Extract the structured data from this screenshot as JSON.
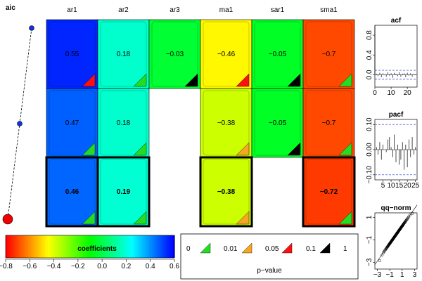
{
  "chart_data": [
    {
      "type": "heatmap",
      "panel": "coefficient-grid",
      "aic_title": "aic",
      "columns": [
        "ar1",
        "ar2",
        "ar3",
        "ma1",
        "sar1",
        "sma1"
      ],
      "rows": [
        {
          "cells": [
            {
              "present": true,
              "label": "0.55",
              "value": 0.55,
              "sig": 0.05
            },
            {
              "present": true,
              "label": "0.18",
              "value": 0.18,
              "sig": 0
            },
            {
              "present": true,
              "label": "−0.03",
              "value": -0.03,
              "sig": 0.1
            },
            {
              "present": true,
              "label": "−0.46",
              "value": -0.46,
              "sig": 0.05
            },
            {
              "present": true,
              "label": "−0.05",
              "value": -0.05,
              "sig": 0.1
            },
            {
              "present": true,
              "label": "−0.7",
              "value": -0.7,
              "sig": 0
            }
          ]
        },
        {
          "cells": [
            {
              "present": true,
              "label": "0.47",
              "value": 0.47,
              "sig": 0
            },
            {
              "present": true,
              "label": "0.18",
              "value": 0.18,
              "sig": 0
            },
            {
              "present": false
            },
            {
              "present": true,
              "label": "−0.38",
              "value": -0.38,
              "sig": 0.01
            },
            {
              "present": true,
              "label": "−0.05",
              "value": -0.05,
              "sig": 0.1
            },
            {
              "present": true,
              "label": "−0.7",
              "value": -0.7,
              "sig": 0
            }
          ]
        },
        {
          "best": true,
          "cells": [
            {
              "present": true,
              "label": "0.46",
              "value": 0.46,
              "sig": 0
            },
            {
              "present": true,
              "label": "0.19",
              "value": 0.19,
              "sig": 0
            },
            {
              "present": false
            },
            {
              "present": true,
              "label": "−0.38",
              "value": -0.38,
              "sig": 0.01
            },
            {
              "present": false
            },
            {
              "present": true,
              "label": "−0.72",
              "value": -0.72,
              "sig": 0
            }
          ]
        }
      ],
      "aic_relative": [
        1.0,
        0.5,
        0.0
      ],
      "colorbar": {
        "title": "coefficients",
        "range": [
          -0.8,
          0.6
        ],
        "ticks": [
          "−0.8",
          "−0.6",
          "−0.4",
          "−0.2",
          "0.0",
          "0.2",
          "0.4",
          "0.6"
        ],
        "tick_values": [
          -0.8,
          -0.6,
          -0.4,
          -0.2,
          0.0,
          0.2,
          0.4,
          0.6
        ]
      },
      "pvalue_legend": {
        "title": "p−value",
        "levels": [
          "0",
          "0.01",
          "0.05",
          "0.1",
          "1"
        ],
        "colors": [
          "#22dd22",
          "#f5a623",
          "#ff1010",
          "#000000"
        ]
      }
    },
    {
      "type": "bar",
      "title": "acf",
      "ylim": [
        -0.25,
        1.0
      ],
      "yticks": [
        "0.0",
        "0.4",
        "0.8"
      ],
      "ytick_values": [
        0.0,
        0.4,
        0.8
      ],
      "xlim": [
        0,
        26
      ],
      "xticks": [
        "0",
        "10",
        "20"
      ],
      "xtick_values": [
        0,
        10,
        20
      ],
      "conf_band": [
        -0.09,
        0.09
      ],
      "lags": [
        1,
        2,
        3,
        4,
        5,
        6,
        7,
        8,
        9,
        10,
        11,
        12,
        13,
        14,
        15,
        16,
        17,
        18,
        19,
        20,
        21,
        22,
        23,
        24,
        25
      ],
      "values": [
        0.02,
        -0.03,
        0.04,
        -0.05,
        0.03,
        0.01,
        -0.04,
        0.05,
        -0.02,
        0.03,
        -0.06,
        0.04,
        0.02,
        -0.03,
        0.05,
        -0.04,
        0.02,
        0.03,
        -0.05,
        0.04,
        -0.02,
        0.03,
        -0.04,
        0.02,
        -0.01
      ]
    },
    {
      "type": "bar",
      "title": "pacf",
      "ylim": [
        -0.12,
        0.12
      ],
      "yticks": [
        "−0.10",
        "0.00",
        "0.10"
      ],
      "ytick_values": [
        -0.1,
        0.0,
        0.1
      ],
      "xlim": [
        0,
        26
      ],
      "xticks": [
        "5",
        "10",
        "15",
        "20",
        "25"
      ],
      "xtick_values": [
        5,
        10,
        15,
        20,
        25
      ],
      "conf_band": [
        -0.1,
        0.1
      ],
      "lags": [
        1,
        2,
        3,
        4,
        5,
        6,
        7,
        8,
        9,
        10,
        11,
        12,
        13,
        14,
        15,
        16,
        17,
        18,
        19,
        20,
        21,
        22,
        23,
        24,
        25
      ],
      "values": [
        0.01,
        -0.02,
        0.03,
        -0.04,
        0.02,
        0.0,
        -0.01,
        0.04,
        0.05,
        0.01,
        -0.03,
        0.06,
        -0.05,
        0.02,
        -0.06,
        -0.04,
        0.03,
        -0.08,
        0.02,
        -0.07,
        0.04,
        -0.03,
        0.05,
        -0.02,
        0.01
      ]
    },
    {
      "type": "scatter",
      "title": "qq−norm",
      "xlim": [
        -3.4,
        3.4
      ],
      "ylim": [
        -3.6,
        1.4
      ],
      "xticks": [
        "−3",
        "−1",
        "1",
        "3"
      ],
      "xtick_values": [
        -3,
        -1,
        1,
        3
      ],
      "yticks": [
        "−3",
        "−1",
        "1"
      ],
      "ytick_values": [
        -3,
        -1,
        1
      ],
      "reference_line": {
        "slope": 0.78,
        "intercept": -0.55
      },
      "n_points": 120
    }
  ]
}
